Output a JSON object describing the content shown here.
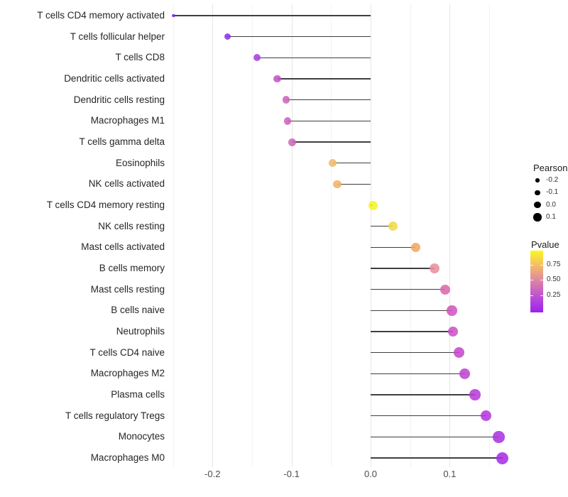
{
  "chart_data": {
    "type": "lollipop",
    "title": "",
    "xlabel": "",
    "ylabel": "",
    "grid": true,
    "xlim": [
      -0.255,
      0.176
    ],
    "x_major_ticks": [
      {
        "value": -0.2,
        "label": "-0.2"
      },
      {
        "value": -0.1,
        "label": "-0.1"
      },
      {
        "value": 0.0,
        "label": "0.0"
      },
      {
        "value": 0.1,
        "label": "0.1"
      }
    ],
    "x_minor_ticks": [
      -0.25,
      -0.15,
      -0.05,
      0.05,
      0.15
    ],
    "points": [
      {
        "label": "T cells CD4 memory activated",
        "pearson": -0.249,
        "color": "#7228de",
        "size": 4.5
      },
      {
        "label": "T cells follicular helper",
        "pearson": -0.181,
        "color": "#9031e3",
        "size": 9
      },
      {
        "label": "T cells CD8",
        "pearson": -0.144,
        "color": "#a93ede",
        "size": 10
      },
      {
        "label": "Dendritic cells activated",
        "pearson": -0.118,
        "color": "#c254c6",
        "size": 10.5
      },
      {
        "label": "Dendritic cells resting",
        "pearson": -0.107,
        "color": "#cc63bb",
        "size": 10.5
      },
      {
        "label": "Macrophages M1",
        "pearson": -0.105,
        "color": "#cc63bb",
        "size": 10.5
      },
      {
        "label": "T cells gamma delta",
        "pearson": -0.099,
        "color": "#cd66b9",
        "size": 11
      },
      {
        "label": "Eosinophils",
        "pearson": -0.048,
        "color": "#f0ba68",
        "size": 11
      },
      {
        "label": "NK cells activated",
        "pearson": -0.042,
        "color": "#f0b365",
        "size": 11.5
      },
      {
        "label": "T cells CD4 memory resting",
        "pearson": 0.003,
        "color": "#f5f423",
        "size": 13
      },
      {
        "label": "NK cells resting",
        "pearson": 0.028,
        "color": "#efda45",
        "size": 13
      },
      {
        "label": "Mast cells activated",
        "pearson": 0.057,
        "color": "#f0a862",
        "size": 13.5
      },
      {
        "label": "B cells memory",
        "pearson": 0.081,
        "color": "#e8909b",
        "size": 14
      },
      {
        "label": "Mast cells resting",
        "pearson": 0.094,
        "color": "#da69ad",
        "size": 14
      },
      {
        "label": "B cells naive",
        "pearson": 0.103,
        "color": "#cf55c0",
        "size": 14.5
      },
      {
        "label": "Neutrophils",
        "pearson": 0.104,
        "color": "#cc50c5",
        "size": 14.5
      },
      {
        "label": "T cells CD4 naive",
        "pearson": 0.112,
        "color": "#c348cd",
        "size": 15
      },
      {
        "label": "Macrophages M2",
        "pearson": 0.119,
        "color": "#bf43d2",
        "size": 15
      },
      {
        "label": "Plasma cells",
        "pearson": 0.132,
        "color": "#b93cd9",
        "size": 15.5
      },
      {
        "label": "T cells regulatory  Tregs",
        "pearson": 0.146,
        "color": "#b336df",
        "size": 15.5
      },
      {
        "label": "Monocytes",
        "pearson": 0.162,
        "color": "#ab33df",
        "size": 16.5
      },
      {
        "label": "Macrophages M0",
        "pearson": 0.167,
        "color": "#a82ce4",
        "size": 17
      }
    ],
    "legend_size": {
      "title": "Pearson",
      "entries": [
        {
          "label": "-0.2",
          "diameter": 5.5
        },
        {
          "label": "-0.1",
          "diameter": 7.5
        },
        {
          "label": "0.0",
          "diameter": 9.5
        },
        {
          "label": "0.1",
          "diameter": 11.5
        }
      ]
    },
    "legend_color": {
      "title": "Pvalue",
      "tick_labels": [
        "0.75",
        "0.50",
        "0.25"
      ],
      "gradient_stops": [
        "#fbf821",
        "#f3ba69",
        "#dc82a8",
        "#bc4fd4",
        "#9b22f0"
      ]
    },
    "colors": {
      "segment": "#3f3f3f",
      "grid_major": "#e6e6e6",
      "grid_minor": "#f3f3f3",
      "axis_text": "#4d4d4d"
    }
  }
}
